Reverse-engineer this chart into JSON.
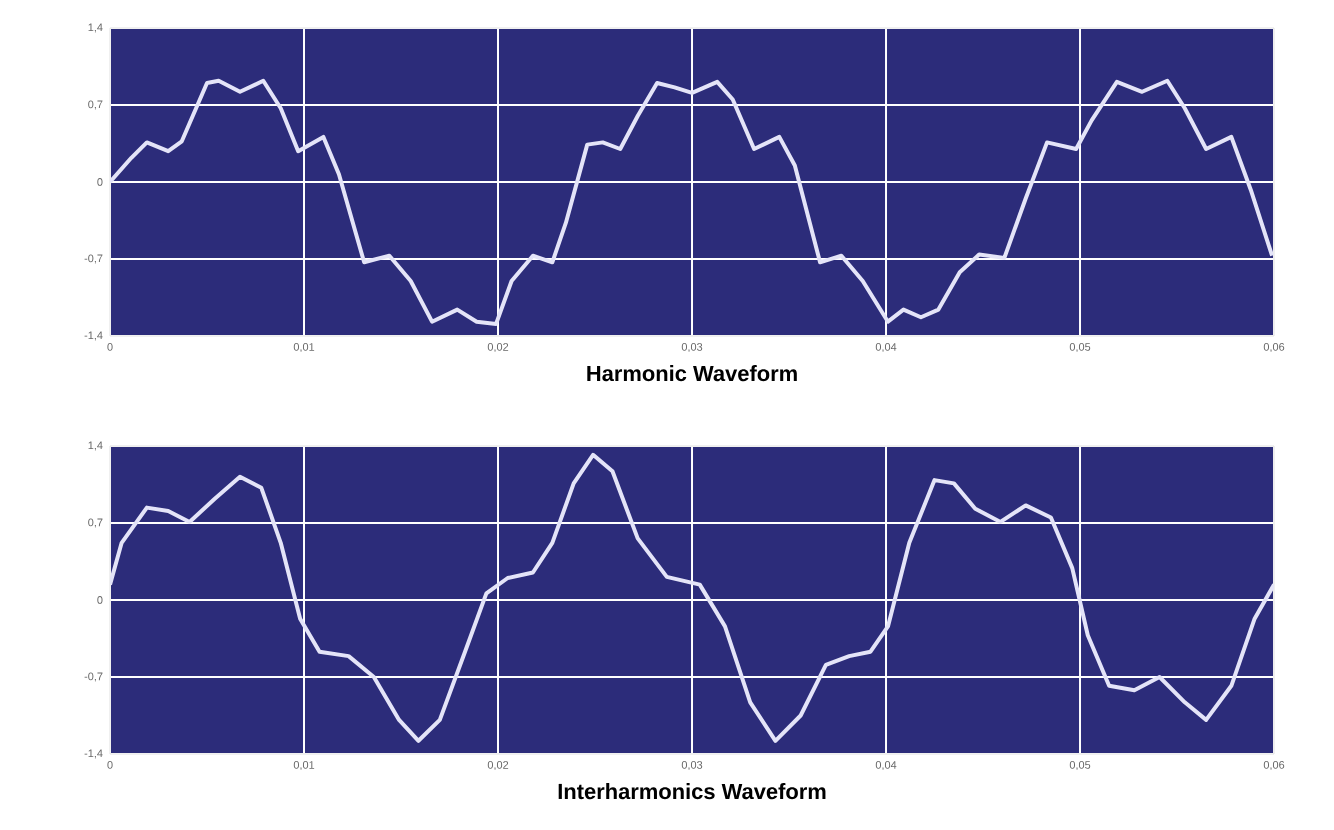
{
  "chart_data": [
    {
      "type": "line",
      "title": "Harmonic Waveform",
      "xlim": [
        0,
        0.06
      ],
      "ylim": [
        -1.4,
        1.4
      ],
      "grid": true,
      "marker": "none",
      "line_style": "solid",
      "xticks": [
        0,
        {
          "value": 0.01,
          "label": "0,01"
        },
        {
          "value": 0.02,
          "label": "0,02"
        },
        {
          "value": 0.03,
          "label": "0,03"
        },
        {
          "value": 0.04,
          "label": "0,04"
        },
        {
          "value": 0.05,
          "label": "0,05"
        },
        {
          "value": 0.06,
          "label": "0,06"
        }
      ],
      "yticks": [
        {
          "value": -1.4,
          "label": "-1,4"
        },
        {
          "value": -0.7,
          "label": "-0,7"
        },
        0,
        {
          "value": 0.7,
          "label": "0,7"
        },
        {
          "value": 1.4,
          "label": "1,4"
        }
      ],
      "x": [
        0,
        0.0011,
        0.0019,
        0.003,
        0.0037,
        0.005,
        0.0056,
        0.0067,
        0.0079,
        0.0088,
        0.0097,
        0.011,
        0.0118,
        0.0131,
        0.0144,
        0.0155,
        0.0166,
        0.0179,
        0.0189,
        0.0199,
        0.0207,
        0.0218,
        0.0228,
        0.0235,
        0.0246,
        0.0254,
        0.0263,
        0.0272,
        0.0282,
        0.0291,
        0.03,
        0.0313,
        0.0321,
        0.0332,
        0.0345,
        0.0353,
        0.0366,
        0.0377,
        0.0388,
        0.0401,
        0.0409,
        0.0418,
        0.0427,
        0.0438,
        0.0448,
        0.0461,
        0.0472,
        0.0483,
        0.0498,
        0.0506,
        0.0519,
        0.0532,
        0.0545,
        0.0554,
        0.0565,
        0.0578,
        0.0588,
        0.0599
      ],
      "series": [
        {
          "color": "#e4e4f8",
          "values": [
            0,
            0.22,
            0.36,
            0.28,
            0.37,
            0.9,
            0.92,
            0.82,
            0.92,
            0.67,
            0.28,
            0.41,
            0.07,
            -0.73,
            -0.67,
            -0.9,
            -1.27,
            -1.16,
            -1.27,
            -1.29,
            -0.9,
            -0.67,
            -0.73,
            -0.37,
            0.34,
            0.36,
            0.3,
            0.6,
            0.9,
            0.86,
            0.81,
            0.91,
            0.75,
            0.3,
            0.41,
            0.15,
            -0.73,
            -0.67,
            -0.9,
            -1.27,
            -1.16,
            -1.23,
            -1.16,
            -0.82,
            -0.66,
            -0.69,
            -0.15,
            0.36,
            0.3,
            0.56,
            0.91,
            0.82,
            0.92,
            0.67,
            0.3,
            0.41,
            -0.07,
            -0.67
          ]
        }
      ]
    },
    {
      "type": "line",
      "title": "Interharmonics Waveform",
      "xlim": [
        0,
        0.06
      ],
      "ylim": [
        -1.4,
        1.4
      ],
      "grid": true,
      "marker": "none",
      "line_style": "solid",
      "xticks": [
        0,
        {
          "value": 0.01,
          "label": "0,01"
        },
        {
          "value": 0.02,
          "label": "0,02"
        },
        {
          "value": 0.03,
          "label": "0,03"
        },
        {
          "value": 0.04,
          "label": "0,04"
        },
        {
          "value": 0.05,
          "label": "0,05"
        },
        {
          "value": 0.06,
          "label": "0,06"
        }
      ],
      "yticks": [
        {
          "value": -1.4,
          "label": "-1,4"
        },
        {
          "value": -0.7,
          "label": "-0,7"
        },
        0,
        {
          "value": 0.7,
          "label": "0,7"
        },
        {
          "value": 1.4,
          "label": "1,4"
        }
      ],
      "x": [
        0,
        0.0006,
        0.0019,
        0.003,
        0.0041,
        0.0054,
        0.0067,
        0.0078,
        0.0088,
        0.0098,
        0.0108,
        0.0123,
        0.0136,
        0.0149,
        0.0159,
        0.017,
        0.0183,
        0.0194,
        0.0205,
        0.0218,
        0.0228,
        0.0239,
        0.0249,
        0.0259,
        0.0272,
        0.0287,
        0.0304,
        0.0317,
        0.033,
        0.0343,
        0.0356,
        0.0369,
        0.0381,
        0.0392,
        0.0401,
        0.0412,
        0.0425,
        0.0435,
        0.0446,
        0.0459,
        0.0472,
        0.0485,
        0.0496,
        0.0504,
        0.0515,
        0.0528,
        0.0541,
        0.0554,
        0.0565,
        0.0578,
        0.059,
        0.06
      ],
      "series": [
        {
          "color": "#e4e4f8",
          "values": [
            0.14,
            0.52,
            0.84,
            0.81,
            0.71,
            0.92,
            1.12,
            1.02,
            0.52,
            -0.17,
            -0.47,
            -0.51,
            -0.7,
            -1.09,
            -1.28,
            -1.09,
            -0.47,
            0.06,
            0.2,
            0.25,
            0.52,
            1.06,
            1.32,
            1.17,
            0.56,
            0.21,
            0.14,
            -0.24,
            -0.93,
            -1.28,
            -1.05,
            -0.59,
            -0.51,
            -0.47,
            -0.24,
            0.52,
            1.09,
            1.06,
            0.83,
            0.71,
            0.86,
            0.75,
            0.29,
            -0.32,
            -0.78,
            -0.82,
            -0.7,
            -0.93,
            -1.09,
            -0.78,
            -0.17,
            0.14
          ]
        }
      ]
    }
  ]
}
